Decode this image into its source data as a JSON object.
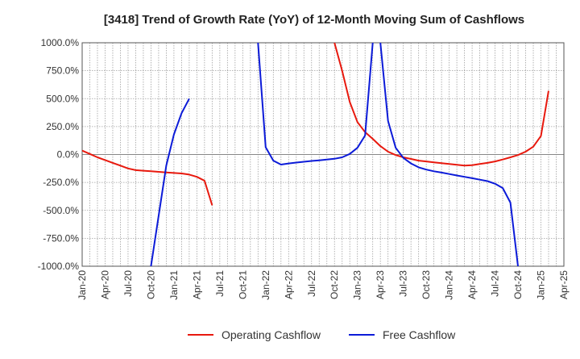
{
  "chart_data": {
    "type": "line",
    "title": "[3418]  Trend of Growth Rate (YoY) of 12-Month Moving Sum of Cashflows",
    "xlabel": "",
    "ylabel": "",
    "ylim": [
      -1000,
      1000
    ],
    "x_ticks": [
      "Jan-20",
      "Apr-20",
      "Jul-20",
      "Oct-20",
      "Jan-21",
      "Apr-21",
      "Jul-21",
      "Oct-21",
      "Jan-22",
      "Apr-22",
      "Jul-22",
      "Oct-22",
      "Jan-23",
      "Apr-23",
      "Jul-23",
      "Oct-23",
      "Jan-24",
      "Apr-24",
      "Jul-24",
      "Oct-24",
      "Jan-25",
      "Apr-25"
    ],
    "y_ticks": [
      "1000.0%",
      "750.0%",
      "500.0%",
      "250.0%",
      "0.0%",
      "-250.0%",
      "-500.0%",
      "-750.0%",
      "-1000.0%"
    ],
    "grid": true,
    "legend_position": "bottom-center",
    "series": [
      {
        "name": "Operating Cashflow",
        "color": "#e8190e",
        "points": [
          [
            "2020-01",
            35
          ],
          [
            "2020-02",
            5
          ],
          [
            "2020-03",
            -25
          ],
          [
            "2020-04",
            -50
          ],
          [
            "2020-05",
            -75
          ],
          [
            "2020-06",
            -100
          ],
          [
            "2020-07",
            -125
          ],
          [
            "2020-08",
            -140
          ],
          [
            "2020-09",
            -145
          ],
          [
            "2020-10",
            -150
          ],
          [
            "2020-11",
            -155
          ],
          [
            "2020-12",
            -160
          ],
          [
            "2021-01",
            -165
          ],
          [
            "2021-02",
            -170
          ],
          [
            "2021-03",
            -180
          ],
          [
            "2021-04",
            -200
          ],
          [
            "2021-05",
            -235
          ],
          [
            "2021-06",
            -455
          ],
          null,
          [
            "2022-10",
            1000
          ],
          [
            "2022-11",
            750
          ],
          [
            "2022-12",
            470
          ],
          [
            "2023-01",
            290
          ],
          [
            "2023-02",
            200
          ],
          [
            "2023-03",
            140
          ],
          [
            "2023-04",
            75
          ],
          [
            "2023-05",
            25
          ],
          [
            "2023-06",
            -5
          ],
          [
            "2023-07",
            -25
          ],
          [
            "2023-08",
            -40
          ],
          [
            "2023-09",
            -55
          ],
          [
            "2023-10",
            -62
          ],
          [
            "2023-11",
            -70
          ],
          [
            "2023-12",
            -78
          ],
          [
            "2024-01",
            -85
          ],
          [
            "2024-02",
            -92
          ],
          [
            "2024-03",
            -100
          ],
          [
            "2024-04",
            -95
          ],
          [
            "2024-05",
            -85
          ],
          [
            "2024-06",
            -75
          ],
          [
            "2024-07",
            -62
          ],
          [
            "2024-08",
            -45
          ],
          [
            "2024-09",
            -25
          ],
          [
            "2024-10",
            -5
          ],
          [
            "2024-11",
            25
          ],
          [
            "2024-12",
            70
          ],
          [
            "2025-01",
            165
          ],
          [
            "2025-02",
            570
          ]
        ]
      },
      {
        "name": "Free Cashflow",
        "color": "#0c1bd8",
        "points": [
          [
            "2020-10",
            -1000
          ],
          [
            "2020-11",
            -550
          ],
          [
            "2020-12",
            -100
          ],
          [
            "2021-01",
            180
          ],
          [
            "2021-02",
            370
          ],
          [
            "2021-03",
            500
          ],
          null,
          [
            "2021-12",
            1000
          ],
          [
            "2022-01",
            65
          ],
          [
            "2022-02",
            -55
          ],
          [
            "2022-03",
            -90
          ],
          [
            "2022-04",
            -80
          ],
          [
            "2022-05",
            -72
          ],
          [
            "2022-06",
            -65
          ],
          [
            "2022-07",
            -58
          ],
          [
            "2022-08",
            -52
          ],
          [
            "2022-09",
            -45
          ],
          [
            "2022-10",
            -38
          ],
          [
            "2022-11",
            -25
          ],
          [
            "2022-12",
            5
          ],
          [
            "2023-01",
            60
          ],
          [
            "2023-02",
            170
          ],
          [
            "2023-03",
            1000
          ],
          null,
          [
            "2023-04",
            1000
          ],
          [
            "2023-05",
            300
          ],
          [
            "2023-06",
            60
          ],
          [
            "2023-07",
            -30
          ],
          [
            "2023-08",
            -80
          ],
          [
            "2023-09",
            -115
          ],
          [
            "2023-10",
            -135
          ],
          [
            "2023-11",
            -150
          ],
          [
            "2023-12",
            -162
          ],
          [
            "2024-01",
            -175
          ],
          [
            "2024-02",
            -188
          ],
          [
            "2024-03",
            -200
          ],
          [
            "2024-04",
            -212
          ],
          [
            "2024-05",
            -225
          ],
          [
            "2024-06",
            -238
          ],
          [
            "2024-07",
            -262
          ],
          [
            "2024-08",
            -300
          ],
          [
            "2024-09",
            -430
          ],
          [
            "2024-10",
            -1000
          ]
        ]
      }
    ]
  }
}
